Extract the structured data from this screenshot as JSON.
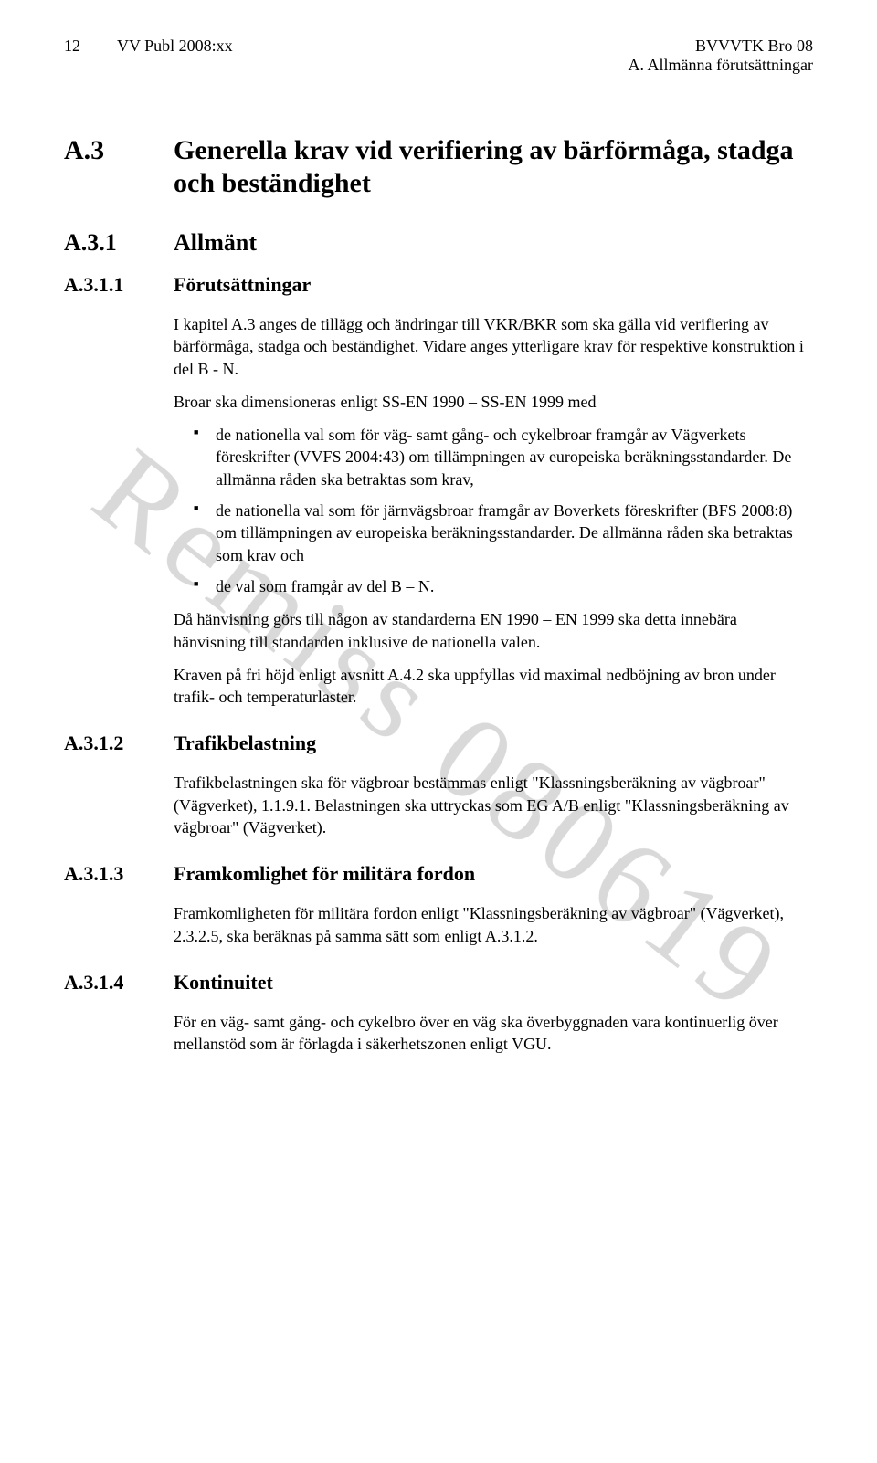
{
  "header": {
    "page_no": "12",
    "publ": "VV Publ 2008:xx",
    "right_a": "BVVVTK Bro 08",
    "right_b": "A. Allmänna förutsättningar"
  },
  "watermark": "Remiss 080619",
  "a3": {
    "num": "A.3",
    "title": "Generella krav vid verifiering av bärförmåga, stadga och beständighet"
  },
  "a31": {
    "num": "A.3.1",
    "title": "Allmänt"
  },
  "a311": {
    "num": "A.3.1.1",
    "title": "Förutsättningar",
    "p1": "I kapitel A.3 anges de tillägg och ändringar till VKR/BKR som ska gälla vid verifiering av bärförmåga, stadga och beständighet. Vidare anges ytterligare krav för respektive konstruktion i del B - N.",
    "p2": "Broar ska dimensioneras enligt SS-EN 1990 – SS-EN 1999 med",
    "b1": "de nationella val som för väg- samt gång- och cykelbroar framgår av Vägverkets föreskrifter (VVFS 2004:43) om tillämpningen av europeiska beräkningsstandarder. De allmänna råden ska betraktas som krav,",
    "b2": "de nationella val som för järnvägsbroar framgår av Boverkets föreskrifter (BFS 2008:8) om tillämpningen av europeiska beräkningsstandarder. De allmänna råden ska betraktas som krav och",
    "b3": "de val som framgår av del B – N.",
    "p3": "Då hänvisning görs till någon av standarderna EN 1990 – EN 1999 ska detta innebära hänvisning till standarden inklusive de nationella valen.",
    "p4": "Kraven på fri höjd enligt avsnitt A.4.2 ska uppfyllas vid maximal nedböjning av bron under trafik- och temperaturlaster."
  },
  "a312": {
    "num": "A.3.1.2",
    "title": "Trafikbelastning",
    "p1": "Trafikbelastningen ska för vägbroar bestämmas enligt \"Klassningsberäkning av vägbroar\" (Vägverket), 1.1.9.1. Belastningen ska uttryckas som EG A/B enligt \"Klassningsberäkning av vägbroar\" (Vägverket)."
  },
  "a313": {
    "num": "A.3.1.3",
    "title": "Framkomlighet för militära fordon",
    "p1": "Framkomligheten för militära fordon enligt \"Klassningsberäkning av vägbroar\" (Vägverket), 2.3.2.5, ska beräknas på samma sätt som enligt A.3.1.2."
  },
  "a314": {
    "num": "A.3.1.4",
    "title": "Kontinuitet",
    "p1": "För en väg- samt gång- och cykelbro över en väg ska överbyggnaden vara kontinuerlig över mellanstöd som är förlagda i säkerhetszonen enligt VGU."
  }
}
